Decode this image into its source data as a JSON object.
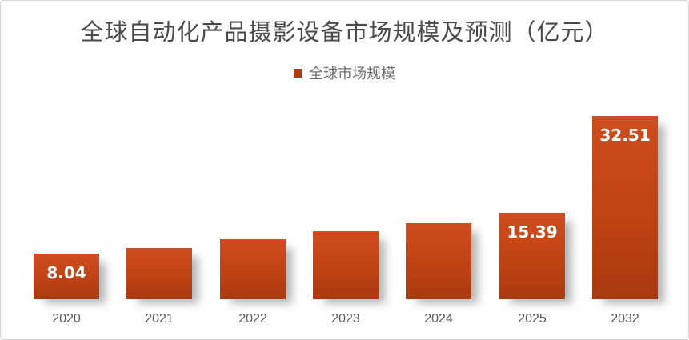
{
  "colors": {
    "bar_top": "#cf4d20",
    "bar_bottom": "#a93a0f",
    "legend_marker": "#b23d12",
    "title_text": "#4a4a4a",
    "axis_text": "#595959",
    "data_label_text": "#ffffff"
  },
  "chart_data": {
    "type": "bar",
    "title": "全球自动化产品摄影设备市场规模及预测（亿元）",
    "legend": [
      "全球市场规模"
    ],
    "legend_position": "top-center",
    "categories": [
      "2020",
      "2021",
      "2022",
      "2023",
      "2024",
      "2025",
      "2032"
    ],
    "values": [
      8.04,
      9.1,
      10.6,
      12.0,
      13.5,
      15.39,
      32.51
    ],
    "data_labels": [
      "8.04",
      "",
      "",
      "",
      "",
      "15.39",
      "32.51"
    ],
    "xlabel": "",
    "ylabel": "",
    "ylim": [
      0,
      35
    ],
    "grid": false
  }
}
